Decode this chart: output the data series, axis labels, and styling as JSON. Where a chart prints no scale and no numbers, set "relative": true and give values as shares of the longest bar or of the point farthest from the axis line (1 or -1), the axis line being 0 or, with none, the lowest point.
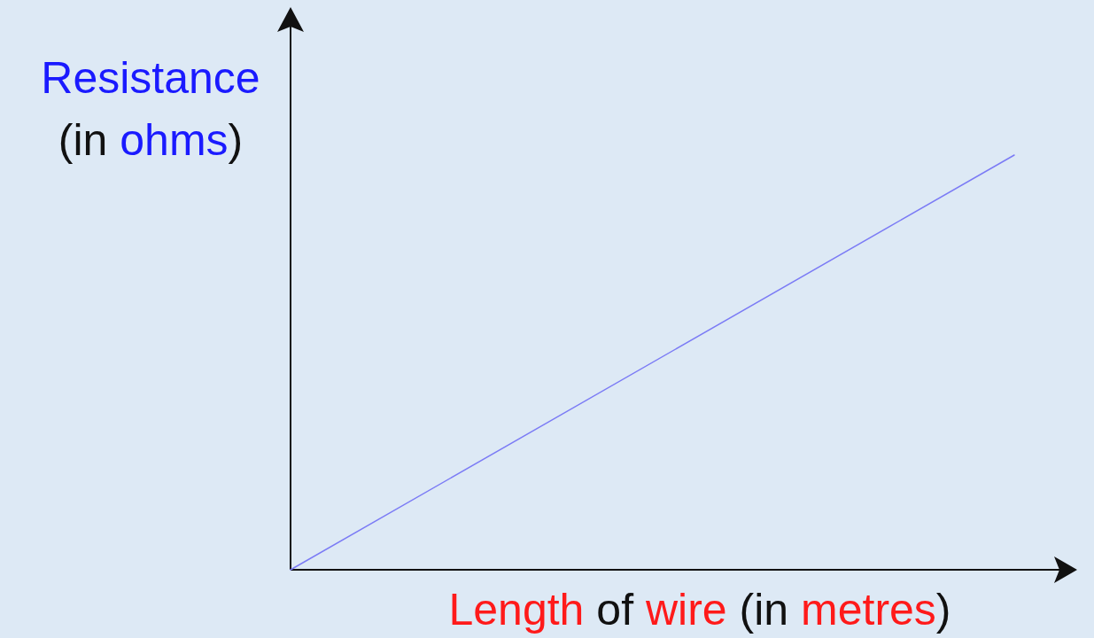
{
  "chart_data": {
    "type": "line",
    "relative": true,
    "xlabel": "Length of wire (in metres)",
    "ylabel": "Resistance (in ohms)",
    "categories": [
      null,
      null
    ],
    "series": [
      {
        "color": "#7b7bf5",
        "values": [
          0,
          1
        ]
      }
    ]
  }
}
